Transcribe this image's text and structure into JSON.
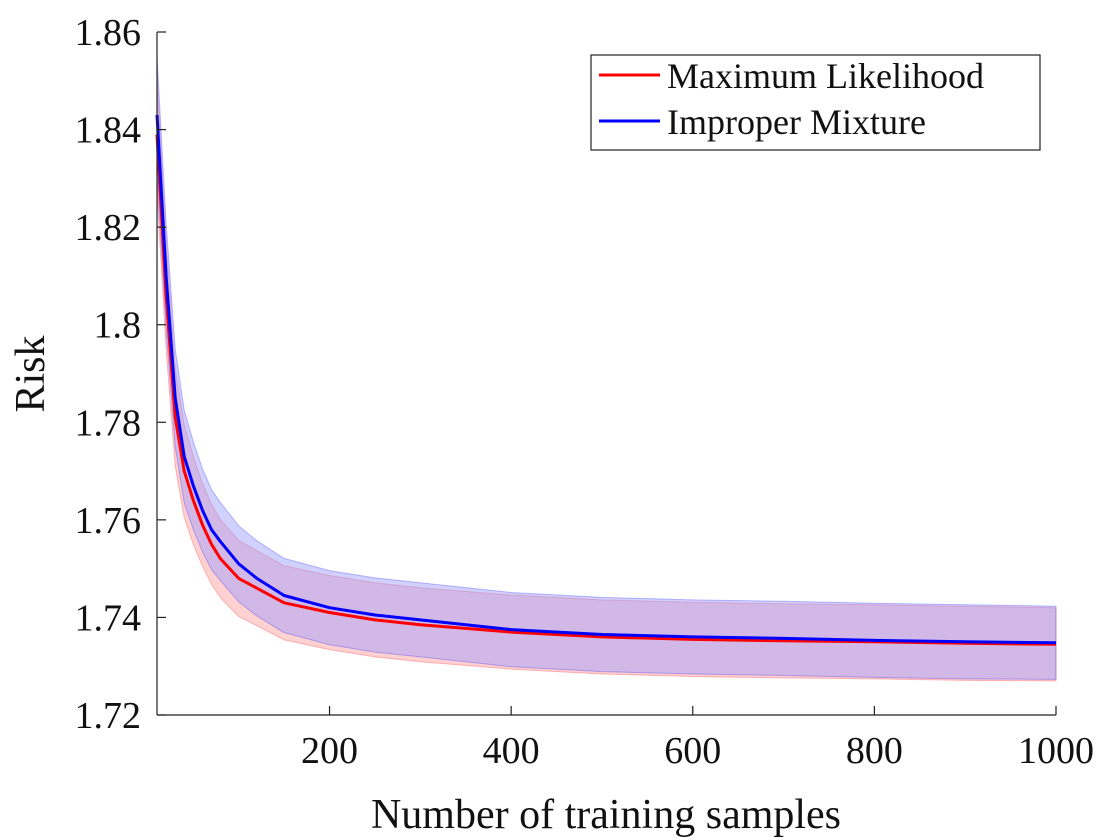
{
  "chart_data": {
    "type": "line",
    "title": "",
    "xlabel": "Number of training samples",
    "ylabel": "Risk",
    "xlim": [
      10,
      1000
    ],
    "ylim": [
      1.72,
      1.86
    ],
    "xticks": [
      200,
      400,
      600,
      800,
      1000
    ],
    "xtick_labels": [
      "200",
      "400",
      "600",
      "800",
      "1000"
    ],
    "yticks": [
      1.72,
      1.74,
      1.76,
      1.78,
      1.8,
      1.82,
      1.84,
      1.86
    ],
    "ytick_labels": [
      "1.72",
      "1.74",
      "1.76",
      "1.78",
      "1.8",
      "1.82",
      "1.84",
      "1.86"
    ],
    "grid": false,
    "legend_position": "top-right",
    "x": [
      10,
      20,
      30,
      40,
      50,
      60,
      70,
      80,
      100,
      120,
      150,
      200,
      250,
      300,
      400,
      500,
      600,
      700,
      800,
      900,
      1000
    ],
    "series": [
      {
        "name": "Maximum Likelihood",
        "color": "#ff0000",
        "band_color": "#ff9a9a",
        "values": [
          1.839,
          1.806,
          1.781,
          1.77,
          1.764,
          1.759,
          1.755,
          1.752,
          1.748,
          1.746,
          1.743,
          1.741,
          1.7395,
          1.7385,
          1.737,
          1.736,
          1.7355,
          1.7352,
          1.735,
          1.7347,
          1.7345
        ],
        "std": [
          0.012,
          0.011,
          0.01,
          0.0095,
          0.009,
          0.0085,
          0.0082,
          0.008,
          0.0078,
          0.0077,
          0.0076,
          0.0076,
          0.0076,
          0.0076,
          0.0076,
          0.0076,
          0.0076,
          0.0076,
          0.0076,
          0.0076,
          0.0075
        ]
      },
      {
        "name": "Improper Mixture",
        "color": "#0000ff",
        "band_color": "#9a9aff",
        "values": [
          1.843,
          1.81,
          1.785,
          1.773,
          1.767,
          1.762,
          1.758,
          1.7555,
          1.751,
          1.748,
          1.7445,
          1.742,
          1.7405,
          1.7395,
          1.7375,
          1.7365,
          1.736,
          1.7357,
          1.7353,
          1.735,
          1.7348
        ],
        "std": [
          0.012,
          0.011,
          0.01,
          0.0095,
          0.009,
          0.0085,
          0.0082,
          0.008,
          0.0078,
          0.0077,
          0.0076,
          0.0076,
          0.0076,
          0.0076,
          0.0076,
          0.0076,
          0.0076,
          0.0076,
          0.0076,
          0.0076,
          0.0075
        ]
      }
    ]
  }
}
